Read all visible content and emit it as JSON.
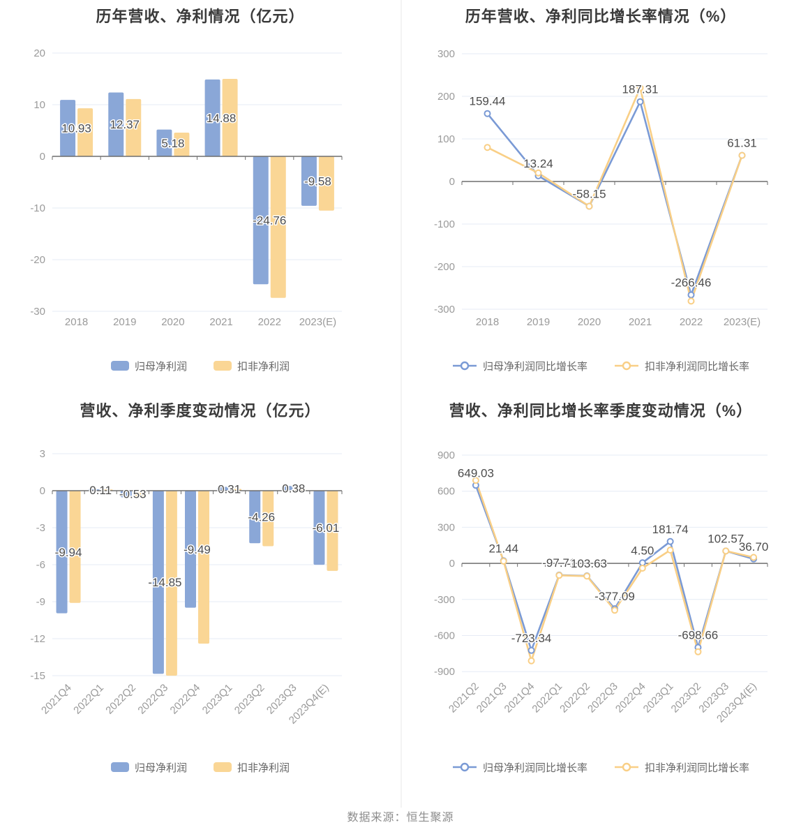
{
  "page": {
    "source_note": "数据来源：恒生聚源"
  },
  "palette": {
    "bar_blue": "#8aa7d7",
    "bar_yellow": "#fad695",
    "line_blue": "#7a9ad5",
    "line_yellow": "#f9cf86",
    "axis": "#6e6e6e",
    "grid": "#e6ebf5",
    "tick_label": "#9a9a9a",
    "data_label": "#4c4c4c",
    "title": "#3a3a3a"
  },
  "chart_data": [
    {
      "id": "annual-values",
      "type": "bar",
      "title": "历年营收、净利情况（亿元）",
      "categories": [
        "2018",
        "2019",
        "2020",
        "2021",
        "2022",
        "2023(E)"
      ],
      "series": [
        {
          "name": "归母净利润",
          "color": "#8aa7d7",
          "values": [
            10.93,
            12.37,
            5.18,
            14.88,
            -24.76,
            -9.58
          ]
        },
        {
          "name": "扣非净利润",
          "color": "#fad695",
          "values": [
            9.3,
            11.1,
            4.6,
            15.0,
            -27.4,
            -10.5
          ]
        }
      ],
      "labels": [
        "10.93",
        "12.37",
        "5.18",
        "14.88",
        "-24.76",
        "-9.58"
      ],
      "yticks": [
        20,
        10,
        0,
        -10,
        -20,
        -30
      ],
      "ylim": [
        -30,
        20
      ],
      "grid": true,
      "legend_position": "bottom",
      "x_rotated": false
    },
    {
      "id": "annual-growth",
      "type": "line",
      "title": "历年营收、净利同比增长率情况（%）",
      "categories": [
        "2018",
        "2019",
        "2020",
        "2021",
        "2022",
        "2023(E)"
      ],
      "series": [
        {
          "name": "归母净利润同比增长率",
          "color": "#7a9ad5",
          "values": [
            159.44,
            13.24,
            -58.15,
            187.31,
            -266.46,
            61.31
          ]
        },
        {
          "name": "扣非净利润同比增长率",
          "color": "#f9cf86",
          "values": [
            80,
            20,
            -58.15,
            220,
            -281,
            61.31
          ]
        }
      ],
      "labels": [
        "159.44",
        "13.24",
        "-58.15",
        "187.31",
        "-266.46",
        "61.31"
      ],
      "yticks": [
        300,
        200,
        100,
        0,
        -100,
        -200,
        -300
      ],
      "ylim": [
        -300,
        300
      ],
      "grid": true,
      "legend_position": "bottom",
      "x_rotated": false
    },
    {
      "id": "quarterly-values",
      "type": "bar",
      "title": "营收、净利季度变动情况（亿元）",
      "categories": [
        "2021Q4",
        "2022Q1",
        "2022Q2",
        "2022Q3",
        "2022Q4",
        "2023Q1",
        "2023Q2",
        "2023Q3",
        "2023Q4(E)"
      ],
      "series": [
        {
          "name": "归母净利润",
          "color": "#8aa7d7",
          "values": [
            -9.94,
            0.11,
            -0.53,
            -14.85,
            -9.49,
            0.31,
            -4.26,
            0.38,
            -6.01
          ]
        },
        {
          "name": "扣非净利润",
          "color": "#fad695",
          "values": [
            -9.1,
            0.1,
            -0.5,
            -15.0,
            -12.4,
            0.15,
            -4.5,
            0.12,
            -6.5
          ]
        }
      ],
      "labels": [
        "-9.94",
        "0.11",
        "-0.53",
        "-14.85",
        "-9.49",
        "0.31",
        "-4.26",
        "0.38",
        "-6.01"
      ],
      "yticks": [
        3,
        0,
        -3,
        -6,
        -9,
        -12,
        -15
      ],
      "ylim": [
        -15,
        3
      ],
      "grid": true,
      "legend_position": "bottom",
      "x_rotated": true
    },
    {
      "id": "quarterly-growth",
      "type": "line",
      "title": "营收、净利同比增长率季度变动情况（%）",
      "categories": [
        "2021Q2",
        "2021Q3",
        "2021Q4",
        "2022Q1",
        "2022Q2",
        "2022Q3",
        "2022Q4",
        "2023Q1",
        "2023Q2",
        "2023Q3",
        "2023Q4(E)"
      ],
      "series": [
        {
          "name": "归母净利润同比增长率",
          "color": "#7a9ad5",
          "values": [
            649.03,
            21.44,
            -723.34,
            -97.71,
            -103.63,
            -377.09,
            4.5,
            181.74,
            -698.66,
            102.57,
            36.7
          ]
        },
        {
          "name": "扣非净利润同比增长率",
          "color": "#f9cf86",
          "values": [
            690,
            18,
            -810,
            -100,
            -106,
            -390,
            -40,
            110,
            -735,
            102.57,
            50
          ]
        }
      ],
      "labels": [
        "649.03",
        "21.44",
        "-723.34",
        "-97.71",
        "-103.63",
        "-377.09",
        "4.50",
        "181.74",
        "-698.66",
        "102.57",
        "36.70"
      ],
      "yticks": [
        900,
        600,
        300,
        0,
        -300,
        -600,
        -900
      ],
      "ylim": [
        -900,
        900
      ],
      "grid": true,
      "legend_position": "bottom",
      "x_rotated": true
    }
  ]
}
